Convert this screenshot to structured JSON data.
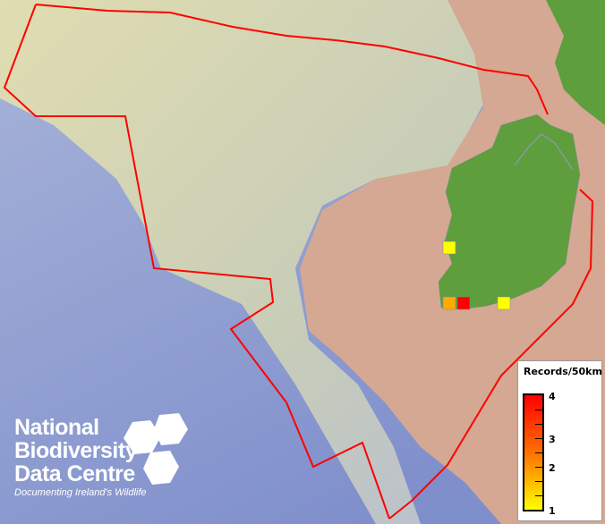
{
  "map": {
    "colors": {
      "sea_deep": "#8d9dd2",
      "shelf": "#d7dab0",
      "land_relief": "#d4a892",
      "land_green": "#5e9e3c",
      "boundary": "#ff0000"
    },
    "records": [
      {
        "count": 1,
        "color": "#ffff00"
      },
      {
        "count": 2,
        "color": "#ffaa00"
      },
      {
        "count": 4,
        "color": "#ff0000"
      },
      {
        "count": 1,
        "color": "#ffff00"
      }
    ]
  },
  "legend": {
    "title": "Records/50km",
    "ticks": [
      "4",
      "3",
      "2",
      "1"
    ],
    "range": [
      1,
      4
    ],
    "colors": [
      "#ffff00",
      "#ff0000"
    ]
  },
  "logo": {
    "name_lines": [
      "National",
      "Biodiversity",
      "Data Centre"
    ],
    "tagline": "Documenting Ireland's Wildlife"
  }
}
